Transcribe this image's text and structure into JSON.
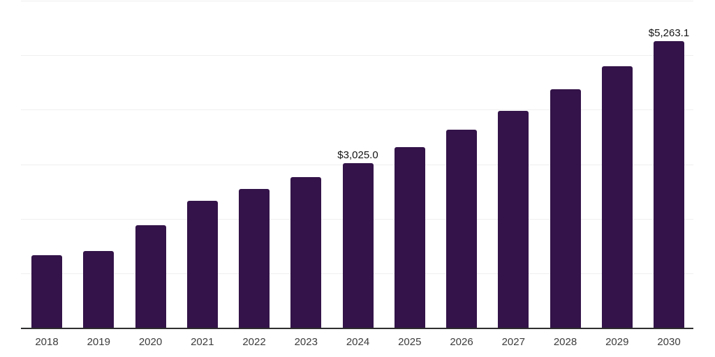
{
  "chart_data": {
    "type": "bar",
    "title": "",
    "xlabel": "",
    "ylabel": "",
    "categories": [
      "2018",
      "2019",
      "2020",
      "2021",
      "2022",
      "2023",
      "2024",
      "2025",
      "2026",
      "2027",
      "2028",
      "2029",
      "2030"
    ],
    "values": [
      1330,
      1405,
      1880,
      2325,
      2540,
      2765,
      3025.0,
      3315,
      3635,
      3985,
      4370,
      4800,
      5263.1
    ],
    "annotations": [
      {
        "index": 6,
        "text": "$3,025.0"
      },
      {
        "index": 12,
        "text": "$5,263.1"
      }
    ],
    "ylim": [
      0,
      6000
    ],
    "gridline_step": 1000,
    "grid": true,
    "legend": false,
    "colors": {
      "bar": "#331349",
      "gridline": "#efefef",
      "axis_line": "#2e2e2e",
      "tick_label": "#3c3c3c",
      "annotation": "#141414"
    }
  }
}
